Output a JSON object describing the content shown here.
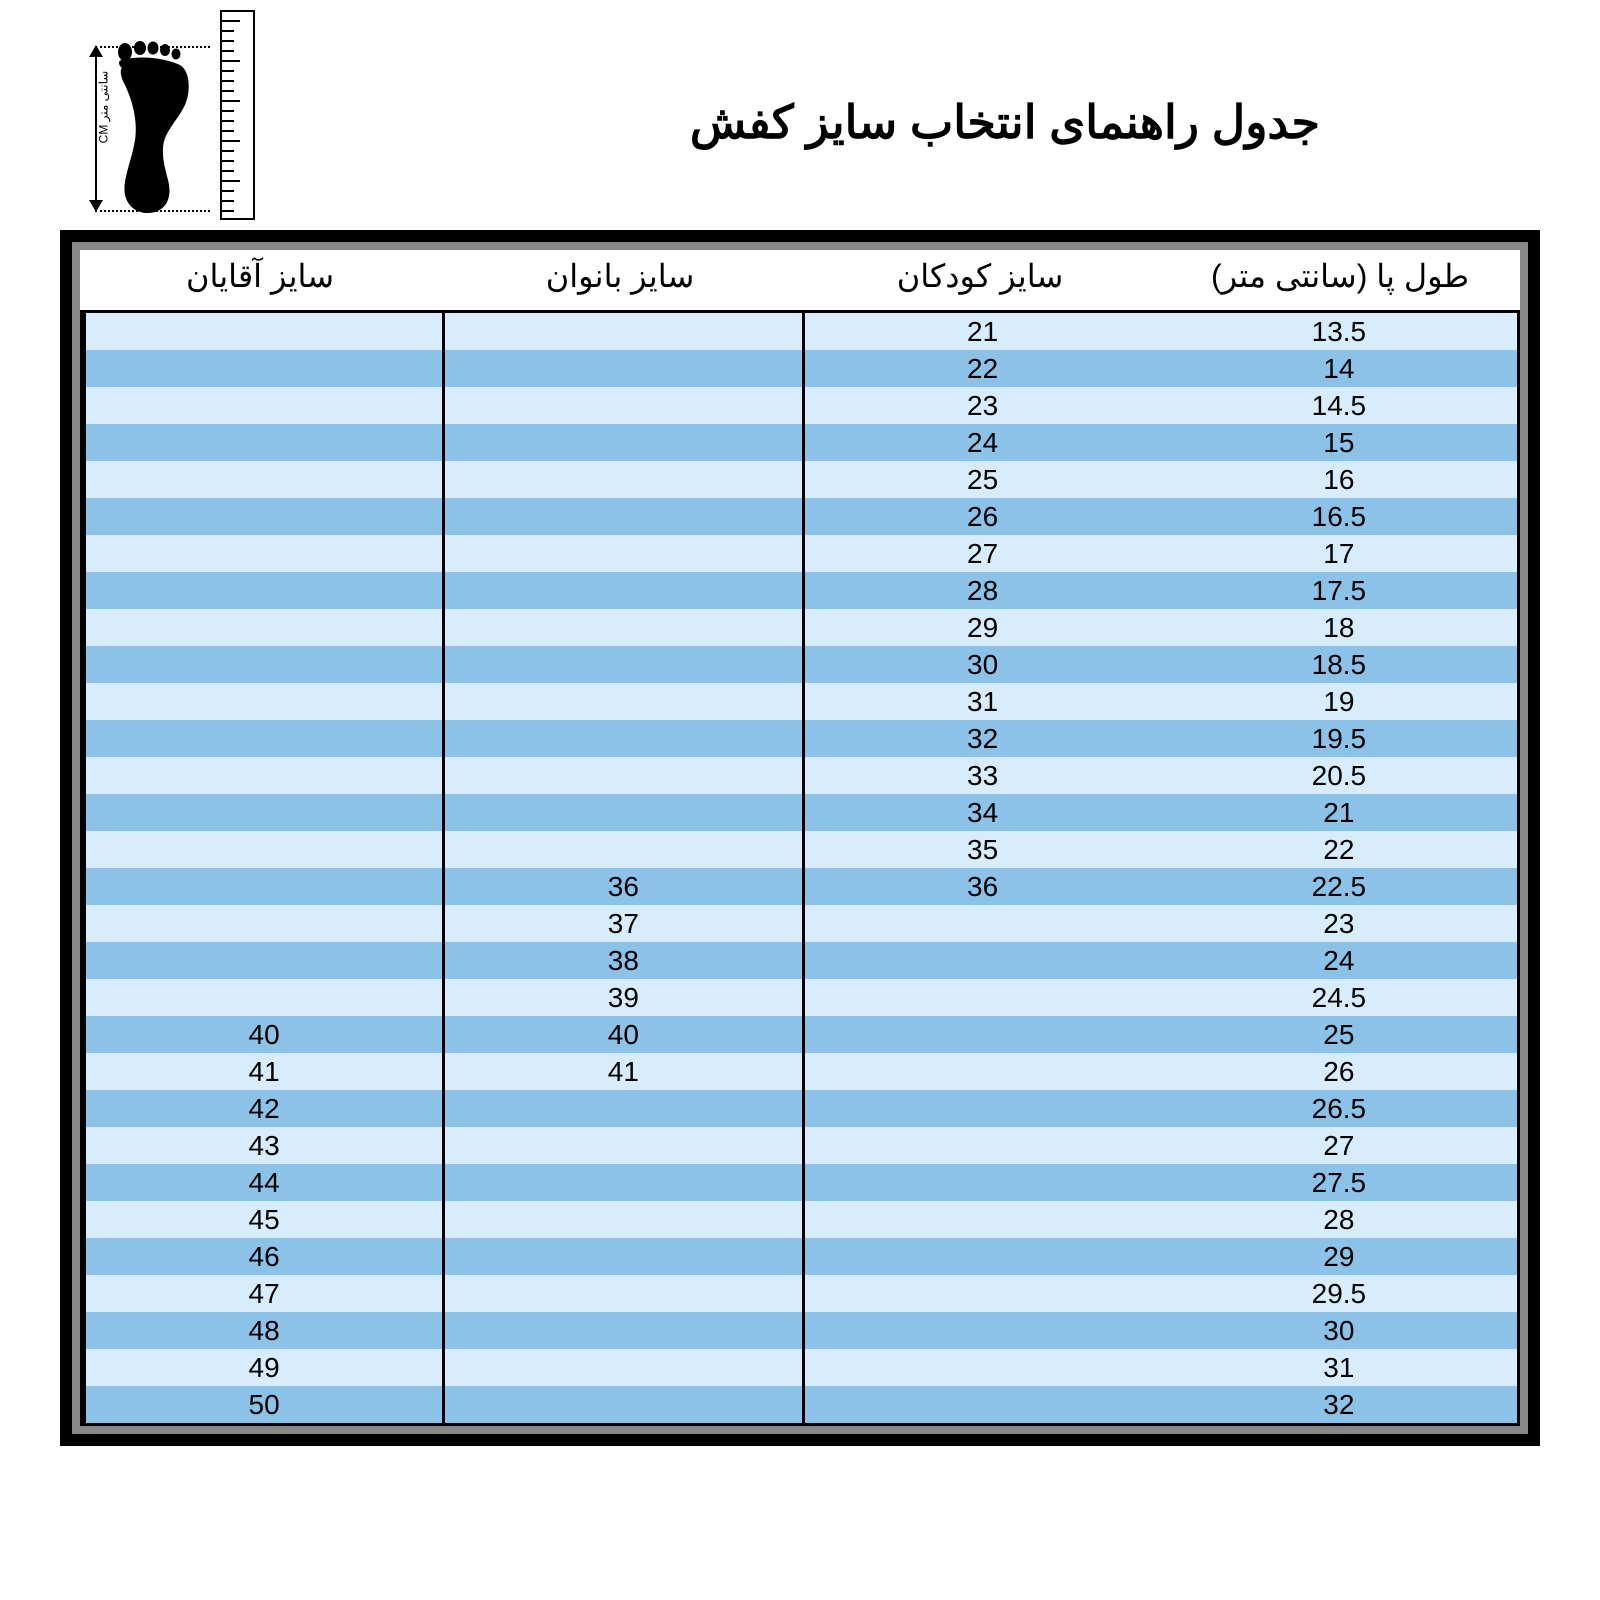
{
  "title": "جدول راهنمای انتخاب سایز کفش",
  "ruler_label": "سانتی متر CM",
  "colors": {
    "row_odd": "#d7ecfc",
    "row_even": "#8cc1e8",
    "border": "#000000",
    "background": "#ffffff",
    "title_fontsize": 46,
    "header_fontsize": 32,
    "cell_fontsize": 28
  },
  "columns": [
    "طول پا (سانتی متر)",
    "سایز کودکان",
    "سایز بانوان",
    "سایز آقایان"
  ],
  "rows": [
    {
      "length": "13.5",
      "kids": "21",
      "women": "",
      "men": ""
    },
    {
      "length": "14",
      "kids": "22",
      "women": "",
      "men": ""
    },
    {
      "length": "14.5",
      "kids": "23",
      "women": "",
      "men": ""
    },
    {
      "length": "15",
      "kids": "24",
      "women": "",
      "men": ""
    },
    {
      "length": "16",
      "kids": "25",
      "women": "",
      "men": ""
    },
    {
      "length": "16.5",
      "kids": "26",
      "women": "",
      "men": ""
    },
    {
      "length": "17",
      "kids": "27",
      "women": "",
      "men": ""
    },
    {
      "length": "17.5",
      "kids": "28",
      "women": "",
      "men": ""
    },
    {
      "length": "18",
      "kids": "29",
      "women": "",
      "men": ""
    },
    {
      "length": "18.5",
      "kids": "30",
      "women": "",
      "men": ""
    },
    {
      "length": "19",
      "kids": "31",
      "women": "",
      "men": ""
    },
    {
      "length": "19.5",
      "kids": "32",
      "women": "",
      "men": ""
    },
    {
      "length": "20.5",
      "kids": "33",
      "women": "",
      "men": ""
    },
    {
      "length": "21",
      "kids": "34",
      "women": "",
      "men": ""
    },
    {
      "length": "22",
      "kids": "35",
      "women": "",
      "men": ""
    },
    {
      "length": "22.5",
      "kids": "36",
      "women": "36",
      "men": ""
    },
    {
      "length": "23",
      "kids": "",
      "women": "37",
      "men": ""
    },
    {
      "length": "24",
      "kids": "",
      "women": "38",
      "men": ""
    },
    {
      "length": "24.5",
      "kids": "",
      "women": "39",
      "men": ""
    },
    {
      "length": "25",
      "kids": "",
      "women": "40",
      "men": "40"
    },
    {
      "length": "26",
      "kids": "",
      "women": "41",
      "men": "41"
    },
    {
      "length": "26.5",
      "kids": "",
      "women": "",
      "men": "42"
    },
    {
      "length": "27",
      "kids": "",
      "women": "",
      "men": "43"
    },
    {
      "length": "27.5",
      "kids": "",
      "women": "",
      "men": "44"
    },
    {
      "length": "28",
      "kids": "",
      "women": "",
      "men": "45"
    },
    {
      "length": "29",
      "kids": "",
      "women": "",
      "men": "46"
    },
    {
      "length": "29.5",
      "kids": "",
      "women": "",
      "men": "47"
    },
    {
      "length": "30",
      "kids": "",
      "women": "",
      "men": "48"
    },
    {
      "length": "31",
      "kids": "",
      "women": "",
      "men": "49"
    },
    {
      "length": "32",
      "kids": "",
      "women": "",
      "men": "50"
    }
  ]
}
